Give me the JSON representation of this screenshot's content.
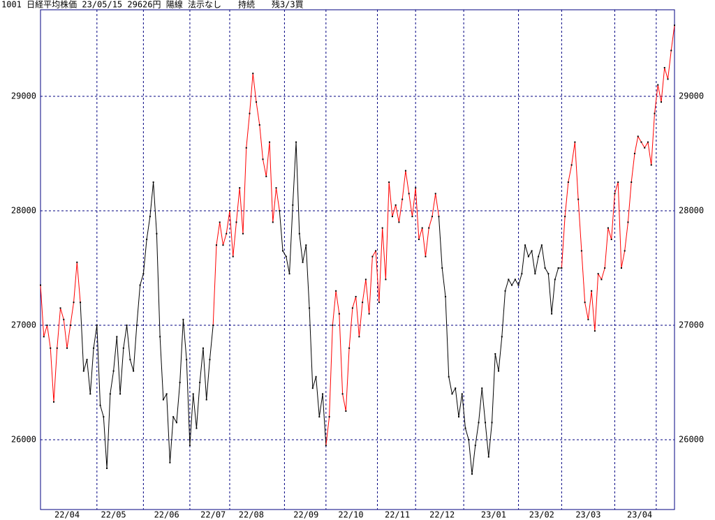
{
  "chart_data": {
    "type": "line",
    "title": "1001 日経平均株価 23/05/15 29626円 陽線 法示なし　　持続　　残3/3買",
    "values": [
      27350,
      26900,
      27000,
      26800,
      26330,
      26800,
      27150,
      27050,
      26800,
      27000,
      27200,
      27550,
      27200,
      26600,
      26700,
      26400,
      26800,
      27000,
      26300,
      26200,
      25750,
      26400,
      26600,
      26900,
      26400,
      26800,
      27000,
      26700,
      26600,
      27000,
      27350,
      27450,
      27750,
      27950,
      28250,
      27800,
      26900,
      26350,
      26400,
      25800,
      26200,
      26150,
      26500,
      27050,
      26700,
      25950,
      26400,
      26100,
      26500,
      26800,
      26350,
      26700,
      27000,
      27700,
      27900,
      27700,
      27800,
      28000,
      27600,
      27900,
      28200,
      27800,
      28550,
      28850,
      29200,
      28950,
      28750,
      28450,
      28300,
      28600,
      27900,
      28200,
      28000,
      27650,
      27600,
      27450,
      28050,
      28600,
      27800,
      27550,
      27700,
      27150,
      26450,
      26550,
      26200,
      26400,
      25950,
      26200,
      27000,
      27300,
      27100,
      26400,
      26250,
      26800,
      27150,
      27250,
      26900,
      27200,
      27400,
      27100,
      27600,
      27650,
      27200,
      27850,
      27400,
      28250,
      27950,
      28050,
      27900,
      28100,
      28350,
      28150,
      27950,
      28200,
      27750,
      27850,
      27600,
      27850,
      27950,
      28150,
      27950,
      27500,
      27250,
      26550,
      26400,
      26450,
      26200,
      26400,
      26100,
      26000,
      25700,
      25950,
      26150,
      26450,
      26150,
      25850,
      26150,
      26750,
      26600,
      26900,
      27300,
      27400,
      27350,
      27400,
      27350,
      27450,
      27700,
      27600,
      27650,
      27450,
      27600,
      27700,
      27500,
      27450,
      27100,
      27400,
      27500,
      27500,
      27950,
      28250,
      28400,
      28600,
      28100,
      27650,
      27200,
      27050,
      27300,
      26950,
      27450,
      27400,
      27500,
      27850,
      27750,
      28150,
      28250,
      27500,
      27650,
      27900,
      28250,
      28500,
      28650,
      28600,
      28550,
      28600,
      28400,
      28850,
      29100,
      28950,
      29250,
      29150,
      29400,
      29620
    ],
    "line_color": "#000000",
    "highlight_color": "#ff0000",
    "frame_color": "#000080",
    "highlight_ranges": [
      [
        0,
        12
      ],
      [
        52,
        72
      ],
      [
        86,
        120
      ],
      [
        157,
        191
      ]
    ],
    "xlim": [
      0,
      191
    ],
    "xticks": [
      {
        "value": 8,
        "label": "22/04"
      },
      {
        "value": 22,
        "label": "22/05"
      },
      {
        "value": 38,
        "label": "22/06"
      },
      {
        "value": 52,
        "label": "22/07"
      },
      {
        "value": 63.5,
        "label": "22/08"
      },
      {
        "value": 80,
        "label": "22/09"
      },
      {
        "value": 93.5,
        "label": "22/10"
      },
      {
        "value": 107.5,
        "label": "22/11"
      },
      {
        "value": 121,
        "label": "22/12"
      },
      {
        "value": 136.5,
        "label": "23/01"
      },
      {
        "value": 151,
        "label": "23/02"
      },
      {
        "value": 165,
        "label": "23/03"
      },
      {
        "value": 180.5,
        "label": "23/04"
      }
    ],
    "xgrid": [
      17,
      31,
      45,
      57,
      73.5,
      86,
      101.5,
      113,
      127.5,
      144,
      157,
      173,
      185.5
    ],
    "ylim": [
      25390,
      29756
    ],
    "yticks": [
      26000,
      27000,
      28000,
      29000
    ],
    "grid": true
  }
}
